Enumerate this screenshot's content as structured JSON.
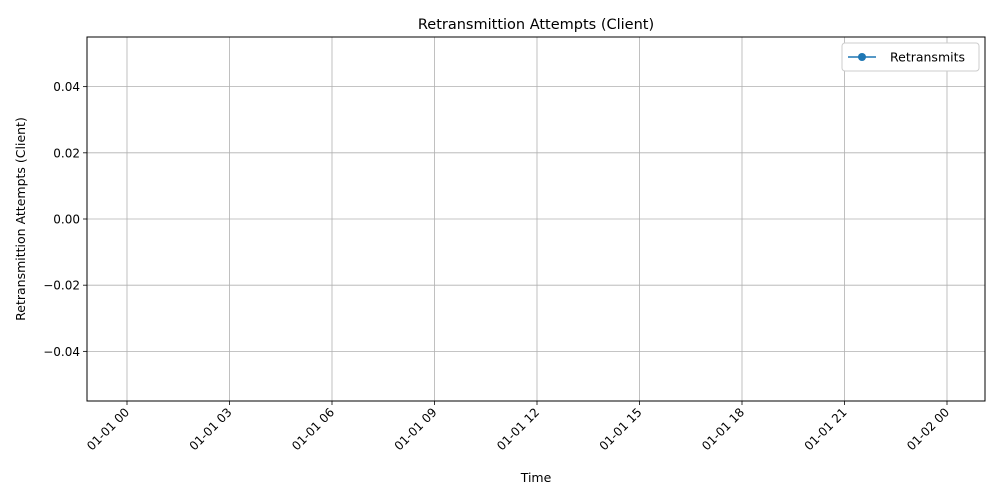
{
  "chart_data": {
    "type": "line",
    "title": "Retransmittion Attempts (Client)",
    "xlabel": "Time",
    "ylabel": "Retransmittion Attempts (Client)",
    "x_ticks": [
      "01-01 00",
      "01-01 03",
      "01-01 06",
      "01-01 09",
      "01-01 12",
      "01-01 15",
      "01-01 18",
      "01-01 21",
      "01-02 00"
    ],
    "y_ticks": [
      "0.04",
      "0.02",
      "0.00",
      "−0.02",
      "−0.04"
    ],
    "y_tick_values": [
      0.04,
      0.02,
      0.0,
      -0.02,
      -0.04
    ],
    "ylim": [
      -0.055,
      0.055
    ],
    "series": [
      {
        "name": "Retransmits",
        "color": "#1f77b4",
        "marker": "circle",
        "x": [],
        "values": []
      }
    ],
    "grid": true,
    "legend_position": "top-right"
  }
}
